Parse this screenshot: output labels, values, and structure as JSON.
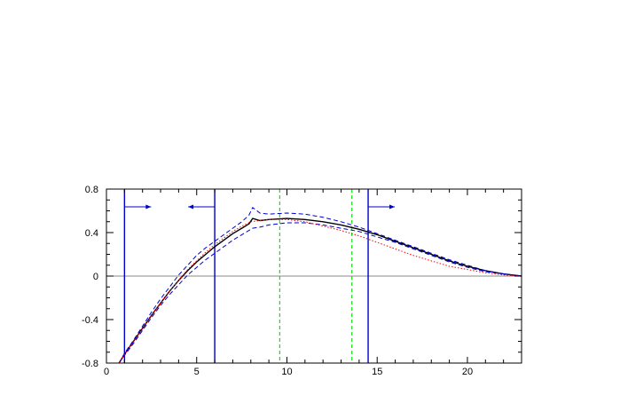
{
  "chart_data": {
    "type": "line",
    "title": "",
    "xlabel": "",
    "ylabel": "",
    "xlim": [
      0,
      23
    ],
    "ylim": [
      -0.8,
      0.8
    ],
    "grid": false,
    "legend": "none",
    "x_ticks": [
      {
        "value": 0,
        "label": "0"
      },
      {
        "value": 5,
        "label": "5"
      },
      {
        "value": 10,
        "label": "10"
      },
      {
        "value": 15,
        "label": "15"
      },
      {
        "value": 20,
        "label": "20"
      }
    ],
    "y_ticks": [
      {
        "value": -0.8,
        "label": "-0.8"
      },
      {
        "value": -0.4,
        "label": "-0.4"
      },
      {
        "value": 0,
        "label": "0"
      },
      {
        "value": 0.4,
        "label": "0.4"
      },
      {
        "value": 0.8,
        "label": "0.8"
      }
    ],
    "colors": {
      "central": "#000000",
      "band": "#0000cc",
      "alternative": "#ff0000",
      "cuts": "#0000cc",
      "markers": "#00dd00",
      "zero_line": "#888888"
    },
    "series": [
      {
        "style": "solid",
        "color": "#000000",
        "x": [
          0.7,
          1.0,
          1.5,
          2.0,
          2.5,
          3.0,
          3.5,
          4.0,
          4.5,
          5.0,
          5.5,
          6.0,
          6.5,
          7.0,
          7.5,
          7.9,
          8.1,
          8.5,
          9,
          10,
          11,
          12,
          13,
          14,
          15,
          16,
          17,
          18,
          19,
          20,
          21,
          22,
          23
        ],
        "y": [
          -0.8,
          -0.72,
          -0.6,
          -0.48,
          -0.36,
          -0.25,
          -0.14,
          -0.04,
          0.05,
          0.13,
          0.2,
          0.27,
          0.33,
          0.39,
          0.44,
          0.48,
          0.53,
          0.51,
          0.52,
          0.53,
          0.52,
          0.5,
          0.47,
          0.43,
          0.38,
          0.32,
          0.26,
          0.2,
          0.14,
          0.09,
          0.05,
          0.02,
          0.0
        ]
      },
      {
        "style": "dashed",
        "color": "#0000cc",
        "x": [
          0.7,
          1.0,
          1.5,
          2.0,
          2.5,
          3.0,
          3.5,
          4.0,
          4.5,
          5.0,
          5.5,
          6.0,
          6.5,
          7.0,
          7.5,
          7.9,
          8.1,
          8.5,
          9,
          10,
          11,
          12,
          13,
          14,
          15,
          16,
          17,
          18,
          19,
          20,
          21,
          22,
          23
        ],
        "y": [
          -0.8,
          -0.71,
          -0.59,
          -0.46,
          -0.33,
          -0.21,
          -0.1,
          0.01,
          0.1,
          0.19,
          0.26,
          0.32,
          0.38,
          0.44,
          0.5,
          0.56,
          0.63,
          0.58,
          0.57,
          0.58,
          0.57,
          0.54,
          0.5,
          0.45,
          0.39,
          0.33,
          0.27,
          0.21,
          0.15,
          0.1,
          0.05,
          0.02,
          0.0
        ]
      },
      {
        "style": "dashed",
        "color": "#0000cc",
        "x": [
          0.7,
          1.0,
          1.5,
          2.0,
          2.5,
          3.0,
          3.5,
          4.0,
          4.5,
          5.0,
          5.5,
          6.0,
          6.5,
          7.0,
          7.5,
          7.9,
          8.1,
          8.5,
          9,
          10,
          11,
          12,
          13,
          14,
          15,
          16,
          17,
          18,
          19,
          20,
          21,
          22,
          23
        ],
        "y": [
          -0.8,
          -0.73,
          -0.62,
          -0.5,
          -0.38,
          -0.27,
          -0.17,
          -0.08,
          0.01,
          0.08,
          0.15,
          0.21,
          0.27,
          0.33,
          0.38,
          0.42,
          0.44,
          0.45,
          0.47,
          0.49,
          0.49,
          0.47,
          0.44,
          0.41,
          0.36,
          0.31,
          0.25,
          0.19,
          0.13,
          0.08,
          0.04,
          0.02,
          0.0
        ]
      },
      {
        "style": "dotted",
        "color": "#ff0000",
        "x": [
          0.7,
          1.0,
          1.5,
          2.0,
          2.5,
          3.0,
          3.5,
          4.0,
          4.5,
          5.0,
          5.5,
          6.0,
          6.5,
          7.0,
          7.5,
          8.0,
          8.5,
          9,
          10,
          11,
          12,
          13,
          14,
          15,
          16,
          17,
          18,
          19,
          20,
          21,
          22,
          23
        ],
        "y": [
          -0.8,
          -0.72,
          -0.6,
          -0.48,
          -0.36,
          -0.25,
          -0.14,
          -0.04,
          0.06,
          0.14,
          0.22,
          0.29,
          0.35,
          0.41,
          0.46,
          0.5,
          0.51,
          0.52,
          0.52,
          0.5,
          0.46,
          0.42,
          0.37,
          0.31,
          0.25,
          0.19,
          0.14,
          0.09,
          0.06,
          0.03,
          0.01,
          0.0
        ]
      }
    ],
    "vertical_lines": [
      {
        "x": 1.0,
        "color": "#0000cc",
        "style": "solid",
        "arrow": "right"
      },
      {
        "x": 6.0,
        "color": "#0000cc",
        "style": "solid",
        "arrow": "left"
      },
      {
        "x": 14.5,
        "color": "#0000cc",
        "style": "solid",
        "arrow": "right"
      },
      {
        "x": 9.6,
        "color": "#00dd00",
        "style": "dashed",
        "arrow": "none"
      },
      {
        "x": 13.6,
        "color": "#00dd00",
        "style": "dashed",
        "arrow": "none"
      }
    ],
    "reference_line_y": 0
  }
}
